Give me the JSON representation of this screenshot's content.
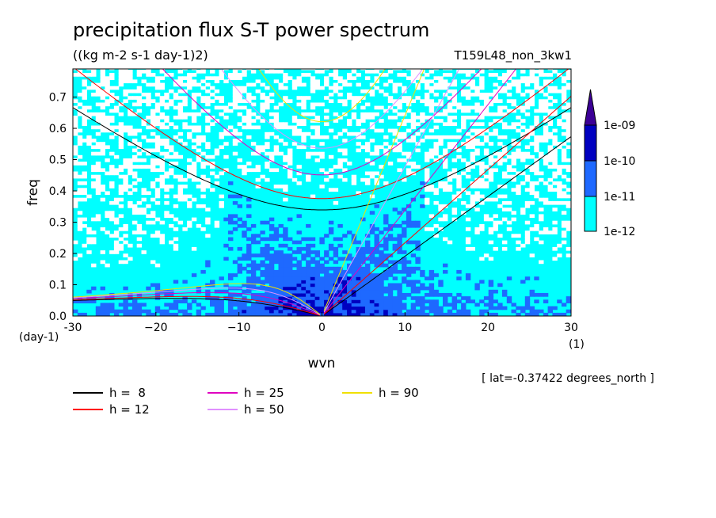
{
  "chart_data": {
    "type": "heatmap",
    "title": "precipitation flux S-T power spectrum",
    "subtitle": "((kg m-2 s-1 day-1)2)",
    "run_label": "T159L48_non_3kw1",
    "xlabel": "wvn",
    "ylabel": "freq",
    "x_unit": "(1)",
    "y_unit": "(day-1)",
    "xlim": [
      -30,
      30
    ],
    "ylim": [
      0,
      0.79
    ],
    "x_ticks": [
      -30,
      -20,
      -10,
      0,
      10,
      20,
      30
    ],
    "x_tick_labels": [
      "-30",
      "−20",
      "−10",
      "0",
      "10",
      "20",
      "30"
    ],
    "y_ticks": [
      0.0,
      0.1,
      0.2,
      0.3,
      0.4,
      0.5,
      0.6,
      0.7
    ],
    "y_tick_labels": [
      "0.0",
      "0.1",
      "0.2",
      "0.3",
      "0.4",
      "0.5",
      "0.6",
      "0.7"
    ],
    "lat_note": "[ lat=-0.37422 degrees_north ]",
    "colorbar": {
      "levels": [
        "1e-12",
        "1e-11",
        "1e-10",
        "1e-09"
      ],
      "colors": [
        "#ffffff",
        "#00ffff",
        "#1e69ff",
        "#0000c0",
        "#3c0096"
      ]
    },
    "dispersion_curves": [
      {
        "label": "h =  8",
        "h": 8,
        "color": "#000000"
      },
      {
        "label": "h = 12",
        "h": 12,
        "color": "#ff0000"
      },
      {
        "label": "h = 25",
        "h": 25,
        "color": "#e000c0"
      },
      {
        "label": "h = 50",
        "h": 50,
        "color": "#e090ff"
      },
      {
        "label": "h = 90",
        "h": 90,
        "color": "#f0e000"
      }
    ]
  }
}
